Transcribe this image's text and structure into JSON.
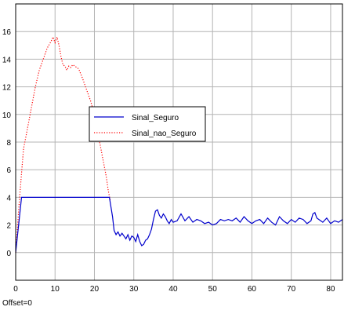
{
  "chart_data": {
    "type": "line",
    "xlim": [
      0,
      83
    ],
    "ylim": [
      -2,
      18
    ],
    "xticks": [
      0,
      10,
      20,
      30,
      40,
      50,
      60,
      70,
      80
    ],
    "yticks": [
      0,
      2,
      4,
      6,
      8,
      10,
      12,
      14,
      16
    ],
    "grid": true,
    "legend_position": "center",
    "series": [
      {
        "name": "Sinal_Seguro",
        "style": "solid",
        "color": "#0000cc",
        "x": [
          0,
          1.5,
          23.8,
          24.6,
          25,
          25.5,
          26,
          26.5,
          27,
          27.5,
          28,
          28.5,
          29,
          29.5,
          30,
          30.5,
          31,
          31.5,
          32,
          32.5,
          33,
          33.5,
          34,
          34.5,
          35,
          35.5,
          36,
          36.5,
          37,
          37.5,
          38,
          38.5,
          39,
          39.5,
          40,
          41,
          42,
          43,
          44,
          45,
          46,
          47,
          48,
          49,
          50,
          51,
          52,
          53,
          54,
          55,
          56,
          57,
          58,
          59,
          60,
          61,
          62,
          63,
          64,
          65,
          66,
          67,
          68,
          69,
          70,
          71,
          72,
          73,
          74,
          75,
          75.5,
          76,
          76.5,
          77,
          78,
          79,
          80,
          81,
          82,
          83
        ],
        "y": [
          0,
          4,
          4,
          2.6,
          1.6,
          1.3,
          1.5,
          1.2,
          1.4,
          1.2,
          1.0,
          1.3,
          0.9,
          1.2,
          1.1,
          0.8,
          1.3,
          0.8,
          0.5,
          0.6,
          0.9,
          1.0,
          1.3,
          1.7,
          2.4,
          3.0,
          3.1,
          2.7,
          2.5,
          2.8,
          2.6,
          2.3,
          2.1,
          2.4,
          2.2,
          2.3,
          2.8,
          2.3,
          2.6,
          2.2,
          2.4,
          2.3,
          2.1,
          2.2,
          2.0,
          2.1,
          2.4,
          2.3,
          2.4,
          2.3,
          2.5,
          2.2,
          2.6,
          2.3,
          2.1,
          2.3,
          2.4,
          2.1,
          2.5,
          2.2,
          2.0,
          2.6,
          2.3,
          2.1,
          2.4,
          2.2,
          2.5,
          2.4,
          2.1,
          2.3,
          2.8,
          2.9,
          2.5,
          2.4,
          2.2,
          2.5,
          2.1,
          2.3,
          2.2,
          2.4
        ]
      },
      {
        "name": "Sinal_nao_Seguro",
        "style": "dotted",
        "color": "#ff0000",
        "x": [
          0,
          1,
          2,
          3,
          4,
          5,
          6,
          7,
          8,
          9,
          9.5,
          10,
          10.5,
          11,
          11.5,
          12,
          12.5,
          13,
          13.5,
          14,
          14.5,
          15,
          16,
          17,
          18,
          19,
          20,
          21,
          22,
          23,
          23.5,
          24
        ],
        "y": [
          0,
          4.0,
          7.5,
          9.0,
          10.5,
          12.0,
          13.2,
          14.0,
          14.8,
          15.3,
          15.6,
          15.2,
          15.6,
          15.0,
          14.2,
          13.6,
          13.5,
          13.2,
          13.5,
          13.4,
          13.6,
          13.5,
          13.3,
          12.6,
          11.8,
          11.0,
          10.0,
          8.5,
          7.0,
          5.5,
          4.5,
          3.8
        ]
      }
    ],
    "offset_label": "Offset=0"
  }
}
